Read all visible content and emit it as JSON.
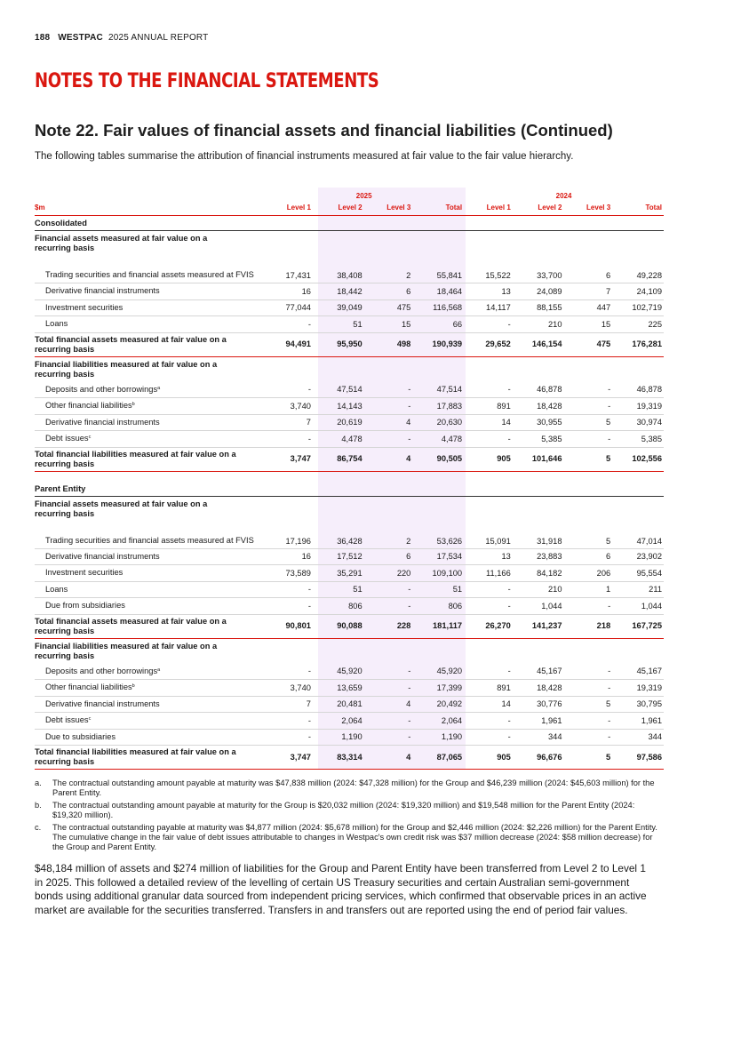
{
  "header": {
    "page_number": "188",
    "brand": "WESTPAC",
    "report": "2025 ANNUAL REPORT"
  },
  "section_title": "NOTES TO THE FINANCIAL STATEMENTS",
  "note_title": "Note 22. Fair values of financial assets and financial liabilities (Continued)",
  "intro": "The following tables summarise the attribution of financial instruments measured at fair value to the fair value hierarchy.",
  "table": {
    "years": [
      "2025",
      "2024"
    ],
    "unit_label": "$m",
    "columns": [
      "Level 1",
      "Level 2",
      "Level 3",
      "Total",
      "Level 1",
      "Level 2",
      "Level 3",
      "Total"
    ],
    "consolidated": {
      "entity": "Consolidated",
      "assets_heading": "Financial assets measured at fair value on a recurring basis",
      "assets": [
        {
          "label": "Trading securities and financial assets measured at FVIS",
          "values": [
            "17,431",
            "38,408",
            "2",
            "55,841",
            "15,522",
            "33,700",
            "6",
            "49,228"
          ]
        },
        {
          "label": "Derivative financial instruments",
          "values": [
            "16",
            "18,442",
            "6",
            "18,464",
            "13",
            "24,089",
            "7",
            "24,109"
          ]
        },
        {
          "label": "Investment securities",
          "values": [
            "77,044",
            "39,049",
            "475",
            "116,568",
            "14,117",
            "88,155",
            "447",
            "102,719"
          ]
        },
        {
          "label": "Loans",
          "values": [
            "-",
            "51",
            "15",
            "66",
            "-",
            "210",
            "15",
            "225"
          ]
        }
      ],
      "assets_total": {
        "label": "Total financial assets measured at fair value on a recurring basis",
        "values": [
          "94,491",
          "95,950",
          "498",
          "190,939",
          "29,652",
          "146,154",
          "475",
          "176,281"
        ]
      },
      "liabilities_heading": "Financial liabilities measured at fair value on a recurring basis",
      "liabilities": [
        {
          "label": "Deposits and other borrowings",
          "sup": "a",
          "values": [
            "-",
            "47,514",
            "-",
            "47,514",
            "-",
            "46,878",
            "-",
            "46,878"
          ]
        },
        {
          "label": "Other financial liabilities",
          "sup": "b",
          "values": [
            "3,740",
            "14,143",
            "-",
            "17,883",
            "891",
            "18,428",
            "-",
            "19,319"
          ]
        },
        {
          "label": "Derivative financial instruments",
          "values": [
            "7",
            "20,619",
            "4",
            "20,630",
            "14",
            "30,955",
            "5",
            "30,974"
          ]
        },
        {
          "label": "Debt issues",
          "sup": "c",
          "values": [
            "-",
            "4,478",
            "-",
            "4,478",
            "-",
            "5,385",
            "-",
            "5,385"
          ]
        }
      ],
      "liabilities_total": {
        "label": "Total financial liabilities measured at fair value on a recurring basis",
        "values": [
          "3,747",
          "86,754",
          "4",
          "90,505",
          "905",
          "101,646",
          "5",
          "102,556"
        ]
      }
    },
    "parent": {
      "entity": "Parent Entity",
      "assets_heading": "Financial assets measured at fair value on a recurring basis",
      "assets": [
        {
          "label": "Trading securities and financial assets measured at FVIS",
          "values": [
            "17,196",
            "36,428",
            "2",
            "53,626",
            "15,091",
            "31,918",
            "5",
            "47,014"
          ]
        },
        {
          "label": "Derivative financial instruments",
          "values": [
            "16",
            "17,512",
            "6",
            "17,534",
            "13",
            "23,883",
            "6",
            "23,902"
          ]
        },
        {
          "label": "Investment securities",
          "values": [
            "73,589",
            "35,291",
            "220",
            "109,100",
            "11,166",
            "84,182",
            "206",
            "95,554"
          ]
        },
        {
          "label": "Loans",
          "values": [
            "-",
            "51",
            "-",
            "51",
            "-",
            "210",
            "1",
            "211"
          ]
        },
        {
          "label": "Due from subsidiaries",
          "values": [
            "-",
            "806",
            "-",
            "806",
            "-",
            "1,044",
            "-",
            "1,044"
          ]
        }
      ],
      "assets_total": {
        "label": "Total financial assets measured at fair value on a recurring basis",
        "values": [
          "90,801",
          "90,088",
          "228",
          "181,117",
          "26,270",
          "141,237",
          "218",
          "167,725"
        ]
      },
      "liabilities_heading": "Financial liabilities measured at fair value on a recurring basis",
      "liabilities": [
        {
          "label": "Deposits and other borrowings",
          "sup": "a",
          "values": [
            "-",
            "45,920",
            "-",
            "45,920",
            "-",
            "45,167",
            "-",
            "45,167"
          ]
        },
        {
          "label": "Other financial liabilities",
          "sup": "b",
          "values": [
            "3,740",
            "13,659",
            "-",
            "17,399",
            "891",
            "18,428",
            "-",
            "19,319"
          ]
        },
        {
          "label": "Derivative financial instruments",
          "values": [
            "7",
            "20,481",
            "4",
            "20,492",
            "14",
            "30,776",
            "5",
            "30,795"
          ]
        },
        {
          "label": "Debt issues",
          "sup": "c",
          "values": [
            "-",
            "2,064",
            "-",
            "2,064",
            "-",
            "1,961",
            "-",
            "1,961"
          ]
        },
        {
          "label": "Due to subsidiaries",
          "values": [
            "-",
            "1,190",
            "-",
            "1,190",
            "-",
            "344",
            "-",
            "344"
          ]
        }
      ],
      "liabilities_total": {
        "label": "Total financial liabilities measured at fair value on a recurring basis",
        "values": [
          "3,747",
          "83,314",
          "4",
          "87,065",
          "905",
          "96,676",
          "5",
          "97,586"
        ]
      }
    }
  },
  "footnotes": [
    {
      "marker": "a.",
      "text": "The contractual outstanding amount payable at maturity was $47,838 million (2024: $47,328 million) for the Group and $46,239 million (2024: $45,603 million) for the Parent Entity."
    },
    {
      "marker": "b.",
      "text": "The contractual outstanding amount payable at maturity for the Group is $20,032 million (2024: $19,320 million) and $19,548 million for the Parent Entity (2024: $19,320 million)."
    },
    {
      "marker": "c.",
      "text": "The contractual outstanding payable at maturity was $4,877 million (2024: $5,678 million) for the Group and $2,446 million (2024: $2,226 million) for the Parent Entity. The cumulative change in the fair value of debt issues attributable to changes in Westpac's own credit risk was $37 million decrease (2024: $58 million decrease) for the Group and Parent Entity."
    }
  ],
  "paragraph": "$48,184 million of assets and $274 million of liabilities for the Group and Parent Entity have been transferred from Level 2 to Level 1 in 2025. This followed a detailed review of the levelling of certain US Treasury securities and certain Australian semi-government bonds using additional granular data sourced from independent pricing services, which confirmed that observable prices in an active market are available for the securities transferred. Transfers in and transfers out are reported using the end of period fair values."
}
